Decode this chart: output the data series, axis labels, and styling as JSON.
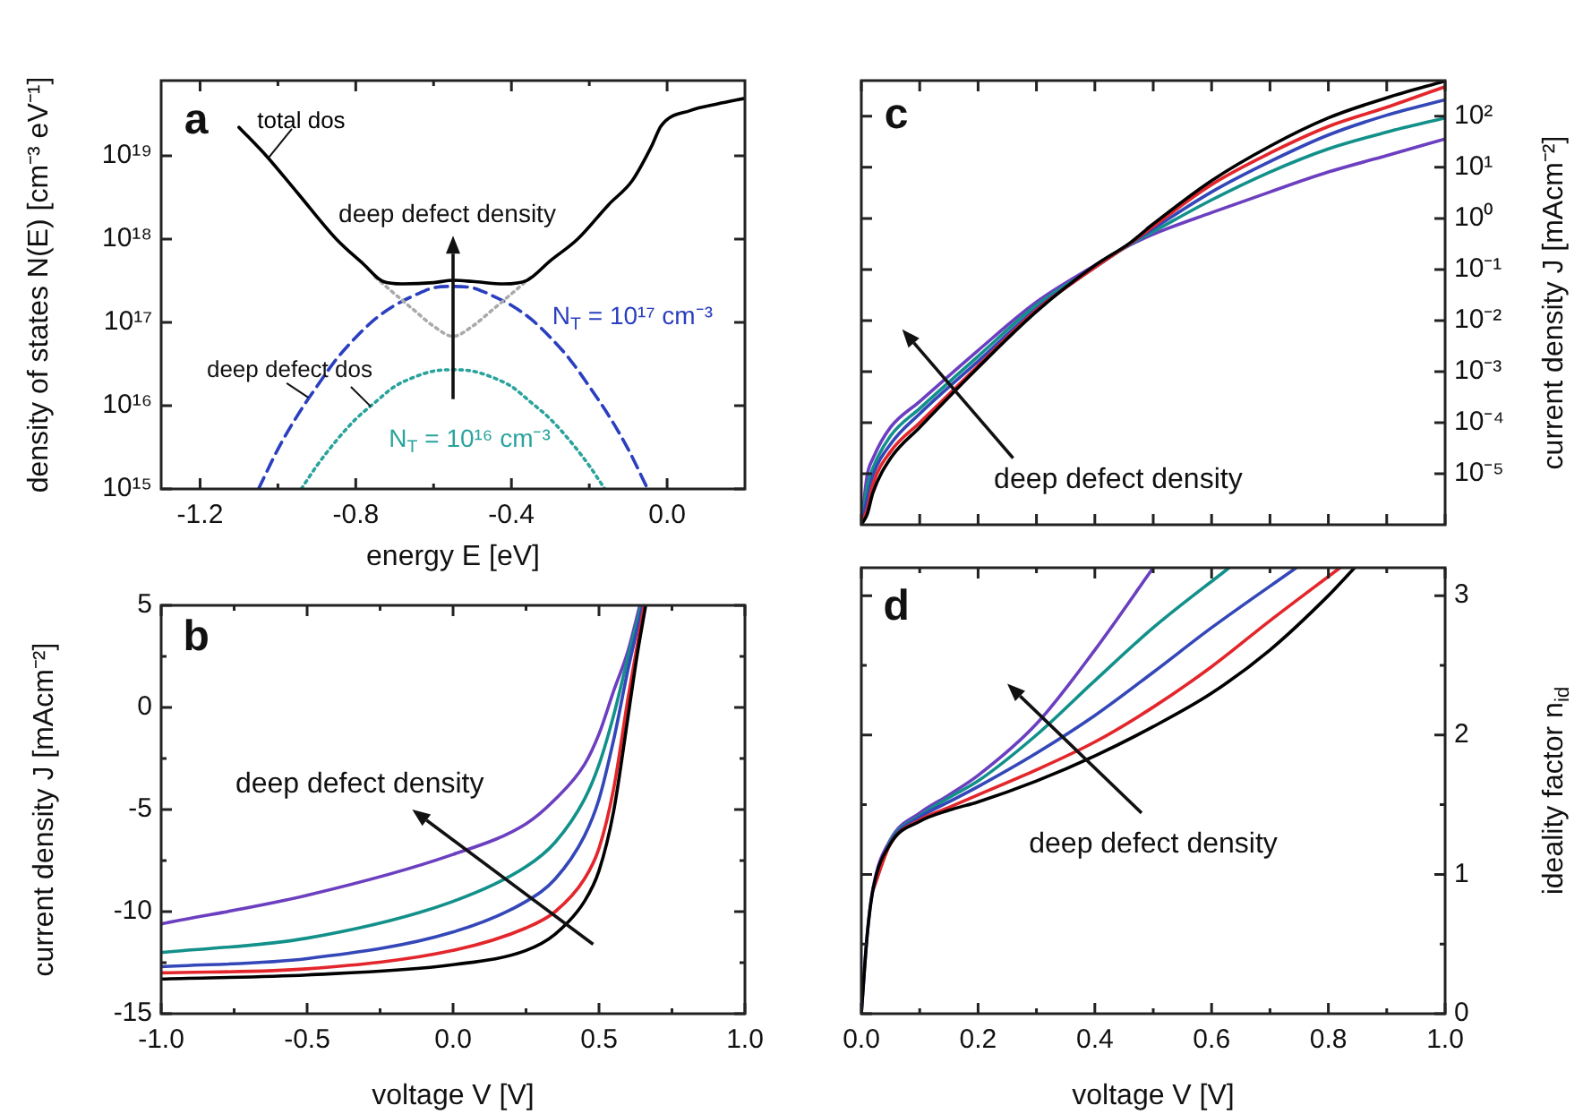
{
  "chart_data": [
    {
      "type": "line",
      "xlabel": "energy E [eV]",
      "ylabel": "density of states N(E) [cm⁻³ eV⁻¹]",
      "log": "y",
      "xlim": [
        -1.3,
        0.2
      ],
      "xticks": [
        -1.2,
        {
          "value": -1.0,
          "label": null
        },
        -0.8,
        {
          "value": -0.6,
          "label": null
        },
        -0.4,
        {
          "value": -0.2,
          "label": null
        },
        {
          "value": 0,
          "label": "0.0"
        }
      ],
      "ylim": [
        1000000000000000.0,
        8e+19
      ],
      "yticks": [
        {
          "value": 1000000000000000.0,
          "label": "10¹⁵"
        },
        {
          "value": 1e+16,
          "label": "10¹⁶"
        },
        {
          "value": 1e+17,
          "label": "10¹⁷"
        },
        {
          "value": 1e+18,
          "label": "10¹⁸"
        },
        {
          "value": 1e+19,
          "label": "10¹⁹"
        }
      ],
      "annotations": [
        "a",
        "deep defect density",
        "deep defect dos"
      ],
      "series": [
        {
          "name": "total dos",
          "color": "#000000",
          "line_style": "solid",
          "x": [
            -1.1,
            -1.03,
            -0.95,
            -0.85,
            -0.78,
            -0.73,
            -0.68,
            -0.6,
            -0.55,
            -0.5,
            -0.42,
            -0.36,
            -0.3,
            -0.23,
            -0.15,
            -0.09,
            -0.04,
            -0.015,
            0.06,
            0.13,
            0.2
          ],
          "values": [
            2.2e+19,
            1e+19,
            3.6e+18,
            1e+18,
            5e+17,
            3.1e+17,
            2.9e+17,
            3e+17,
            3.2e+17,
            3.1e+17,
            2.9e+17,
            3.2e+17,
            5.5e+17,
            1e+18,
            2.6e+18,
            5e+18,
            1.3e+19,
            2.3e+19,
            3.5e+19,
            4.2e+19,
            4.9e+19
          ]
        },
        {
          "color": "#aaaaaa",
          "line_style": "dotted",
          "x": [
            -0.75,
            -0.7,
            -0.65,
            -0.6,
            -0.55,
            -0.5,
            -0.45,
            -0.4,
            -0.35
          ],
          "values": [
            3.5e+17,
            2.2e+17,
            1.4e+17,
            9e+16,
            6.8e+16,
            9e+16,
            1.4e+17,
            2.2e+17,
            3.5e+17
          ]
        },
        {
          "name": "N$_{T}$ = 10¹⁷ cm⁻³",
          "color": "#2a3fbf",
          "line_style": "dashed",
          "x": [
            -1.05,
            -1.0,
            -0.95,
            -0.9,
            -0.85,
            -0.8,
            -0.75,
            -0.7,
            -0.65,
            -0.6,
            -0.55,
            -0.5,
            -0.45,
            -0.4,
            -0.35,
            -0.3,
            -0.25,
            -0.2,
            -0.15,
            -0.1,
            -0.05
          ],
          "values": [
            1000000000000000.0,
            3000000000000000.0,
            7600000000000000.0,
            1.7e+16,
            3.6e+16,
            6.6e+16,
            1.1e+17,
            1.6e+17,
            2.1e+17,
            2.6e+17,
            2.7e+17,
            2.6e+17,
            2.1e+17,
            1.6e+17,
            1.1e+17,
            6.6e+16,
            3.6e+16,
            1.7e+16,
            7600000000000000.0,
            3000000000000000.0,
            1000000000000000.0
          ]
        },
        {
          "name": "N$_{T}$ = 10¹⁶ cm⁻³",
          "color": "#2aa39c",
          "line_style": "dotted",
          "x": [
            -0.94,
            -0.9,
            -0.85,
            -0.8,
            -0.75,
            -0.7,
            -0.65,
            -0.6,
            -0.55,
            -0.5,
            -0.45,
            -0.4,
            -0.35,
            -0.3,
            -0.25,
            -0.2,
            -0.16
          ],
          "values": [
            1000000000000000.0,
            1900000000000000.0,
            3800000000000000.0,
            6900000000000000.0,
            1.1e+16,
            1.7e+16,
            2.2e+16,
            2.6e+16,
            2.7e+16,
            2.6e+16,
            2.2e+16,
            1.7e+16,
            1.1e+16,
            6900000000000000.0,
            3800000000000000.0,
            1900000000000000.0,
            1000000000000000.0
          ]
        }
      ]
    },
    {
      "type": "line",
      "xlabel": "voltage V [V]",
      "ylabel": "current density J [mAcm⁻²]",
      "xlim": [
        -1,
        1
      ],
      "xticks": [
        {
          "value": -1,
          "label": "-1.0"
        },
        {
          "value": -0.75,
          "label": null
        },
        -0.5,
        {
          "value": -0.25,
          "label": null
        },
        {
          "value": 0,
          "label": "0.0"
        },
        {
          "value": 0.25,
          "label": null
        },
        0.5,
        {
          "value": 0.75,
          "label": null
        },
        {
          "value": 1,
          "label": "1.0"
        }
      ],
      "ylim": [
        -15,
        5
      ],
      "yticks": [
        -15,
        {
          "value": -12.5,
          "label": null
        },
        -10,
        {
          "value": -7.5,
          "label": null
        },
        -5,
        {
          "value": -2.5,
          "label": null
        },
        0,
        {
          "value": 2.5,
          "label": null
        },
        5
      ],
      "annotations": [
        "b",
        "deep defect density"
      ],
      "series": [
        {
          "color": "#000000",
          "x": [
            -1,
            -0.5,
            0,
            0.25,
            0.35,
            0.45,
            0.5,
            0.55,
            0.6,
            0.63,
            0.66
          ],
          "values": [
            -13.3,
            -13.1,
            -12.6,
            -11.9,
            -11.1,
            -9.5,
            -8.0,
            -5.1,
            -0.4,
            2.5,
            5
          ]
        },
        {
          "color": "#e3262b",
          "x": [
            -1,
            -0.5,
            0,
            0.25,
            0.35,
            0.45,
            0.5,
            0.55,
            0.6,
            0.655
          ],
          "values": [
            -13.0,
            -12.8,
            -11.9,
            -10.8,
            -10.0,
            -8.4,
            -6.9,
            -4.0,
            0.5,
            5
          ]
        },
        {
          "color": "#3447b8",
          "x": [
            -1,
            -0.5,
            0,
            0.25,
            0.35,
            0.45,
            0.5,
            0.55,
            0.6,
            0.65
          ],
          "values": [
            -12.7,
            -12.3,
            -11.0,
            -9.5,
            -8.4,
            -6.3,
            -4.5,
            -1.6,
            1.9,
            5
          ]
        },
        {
          "color": "#12908a",
          "x": [
            -1,
            -0.5,
            0,
            0.25,
            0.35,
            0.45,
            0.5,
            0.55,
            0.6,
            0.645
          ],
          "values": [
            -12.0,
            -11.3,
            -9.5,
            -7.8,
            -6.6,
            -4.5,
            -2.8,
            -0.4,
            2.5,
            5
          ]
        },
        {
          "color": "#6b3fbf",
          "x": [
            -1,
            -0.5,
            0,
            0.25,
            0.35,
            0.45,
            0.5,
            0.55,
            0.6,
            0.64
          ],
          "values": [
            -10.6,
            -9.2,
            -7.2,
            -5.7,
            -4.5,
            -2.8,
            -1.3,
            0.8,
            2.8,
            5
          ]
        }
      ]
    },
    {
      "type": "line",
      "ylabel": "current density J [mAcm⁻²]",
      "log": "y",
      "tick_labels": "y",
      "xlim": [
        0,
        1
      ],
      "xticks": [
        0,
        0.1,
        0.2,
        0.3,
        0.4,
        0.5,
        0.6,
        0.7,
        0.8,
        0.9,
        1
      ],
      "ylim": [
        1e-06,
        500
      ],
      "yticks": [
        {
          "value": 1e-05,
          "label": "10⁻⁵"
        },
        {
          "value": 0.0001,
          "label": "10⁻⁴"
        },
        {
          "value": 0.001,
          "label": "10⁻³"
        },
        {
          "value": 0.01,
          "label": "10⁻²"
        },
        {
          "value": 0.1,
          "label": "10⁻¹"
        },
        {
          "value": 1,
          "label": "10⁰"
        },
        {
          "value": 10,
          "label": "10¹"
        },
        {
          "value": 100,
          "label": "10²"
        }
      ],
      "annotations": [
        "c",
        "deep defect density"
      ],
      "x": [
        0,
        0.01,
        0.02,
        0.05,
        0.1,
        0.2,
        0.3,
        0.4,
        0.46,
        0.5,
        0.6,
        0.7,
        0.8,
        0.9,
        1
      ],
      "series": [
        {
          "color": "#000000",
          "values": [
            1e-06,
            1.6e-06,
            4.3e-06,
            2e-05,
            8.1e-05,
            0.0012,
            0.015,
            0.12,
            0.33,
            0.78,
            5.5,
            26,
            93,
            230,
            490
          ]
        },
        {
          "color": "#e3262b",
          "values": [
            1e-06,
            2e-06,
            6.3e-06,
            2.7e-05,
            0.0001,
            0.0013,
            0.016,
            0.11,
            0.32,
            0.7,
            4.6,
            19,
            63,
            150,
            380
          ]
        },
        {
          "color": "#3447b8",
          "values": [
            1e-06,
            3.3e-06,
            9.3e-06,
            3.8e-05,
            0.00015,
            0.0016,
            0.017,
            0.11,
            0.32,
            0.63,
            3.3,
            13,
            43,
            105,
            210
          ]
        },
        {
          "color": "#12908a",
          "values": [
            1e-06,
            5.5e-06,
            1.3e-05,
            5.5e-05,
            0.00019,
            0.002,
            0.02,
            0.11,
            0.31,
            0.55,
            2.3,
            8.1,
            23,
            49,
            93
          ]
        },
        {
          "color": "#6b3fbf",
          "values": [
            1e-06,
            9.3e-06,
            2e-05,
            8.1e-05,
            0.00026,
            0.0026,
            0.023,
            0.12,
            0.3,
            0.49,
            1.3,
            3.3,
            8.1,
            17,
            36
          ]
        }
      ]
    },
    {
      "type": "line",
      "xlabel": "voltage V [V]",
      "ylabel": "ideality factor n$_{id}$",
      "xlim": [
        0,
        1
      ],
      "xticks": [
        {
          "value": 0,
          "label": "0.0"
        },
        {
          "value": 0.1,
          "label": null
        },
        0.2,
        {
          "value": 0.3,
          "label": null
        },
        0.4,
        {
          "value": 0.5,
          "label": null
        },
        0.6,
        {
          "value": 0.7,
          "label": null
        },
        0.8,
        {
          "value": 0.9,
          "label": null
        },
        {
          "value": 1,
          "label": "1.0"
        }
      ],
      "ylim": [
        0,
        3.2
      ],
      "yticks": [
        0,
        {
          "value": 0.5,
          "label": null
        },
        1,
        {
          "value": 1.5,
          "label": null
        },
        2,
        {
          "value": 2.5,
          "label": null
        },
        3
      ],
      "annotations": [
        "d",
        "deep defect density"
      ],
      "series": [
        {
          "color": "#000000",
          "x": [
            0,
            0.01,
            0.02,
            0.05,
            0.1,
            0.15,
            0.2,
            0.3,
            0.4,
            0.5,
            0.6,
            0.7,
            0.8,
            0.845
          ],
          "values": [
            0,
            0.56,
            0.89,
            1.22,
            1.38,
            1.46,
            1.52,
            1.67,
            1.85,
            2.06,
            2.3,
            2.61,
            3.0,
            3.2
          ]
        },
        {
          "color": "#e3262b",
          "x": [
            0.02,
            0.05,
            0.1,
            0.15,
            0.2,
            0.3,
            0.4,
            0.5,
            0.6,
            0.7,
            0.82
          ],
          "values": [
            0.89,
            1.22,
            1.39,
            1.48,
            1.57,
            1.75,
            1.95,
            2.2,
            2.49,
            2.82,
            3.2
          ]
        },
        {
          "color": "#3447b8",
          "x": [
            0.02,
            0.05,
            0.1,
            0.15,
            0.2,
            0.3,
            0.4,
            0.5,
            0.6,
            0.745
          ],
          "values": [
            0.89,
            1.23,
            1.41,
            1.52,
            1.63,
            1.87,
            2.14,
            2.45,
            2.77,
            3.2
          ]
        },
        {
          "color": "#12908a",
          "x": [
            0.02,
            0.05,
            0.1,
            0.15,
            0.2,
            0.3,
            0.4,
            0.5,
            0.63
          ],
          "values": [
            0.9,
            1.24,
            1.42,
            1.55,
            1.67,
            2.0,
            2.39,
            2.77,
            3.2
          ]
        },
        {
          "color": "#6b3fbf",
          "x": [
            0,
            0.01,
            0.02,
            0.05,
            0.1,
            0.15,
            0.2,
            0.3,
            0.4,
            0.5
          ],
          "values": [
            0,
            0.57,
            0.9,
            1.25,
            1.44,
            1.57,
            1.71,
            2.08,
            2.61,
            3.2
          ]
        }
      ]
    }
  ]
}
